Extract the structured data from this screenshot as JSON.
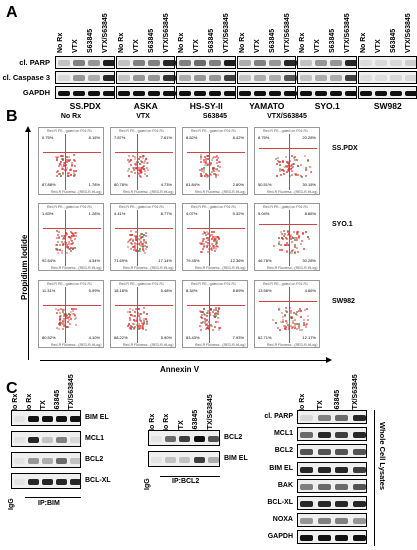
{
  "panelA": {
    "letter": "A",
    "lane_labels": [
      "No Rx",
      "VTX",
      "S63845",
      "VTX/S63845"
    ],
    "rows": [
      "cl. PARP",
      "cl. Caspase 3",
      "GAPDH"
    ],
    "cell_lines": [
      "SS.PDX",
      "ASKA",
      "HS-SY-II",
      "YAMATO",
      "SYO.1",
      "SW982"
    ]
  },
  "panelB": {
    "letter": "B",
    "columns": [
      "No Rx",
      "VTX",
      "S63845",
      "VTX/S63845"
    ],
    "rows": [
      "SS.PDX",
      "SYO.1",
      "SW982"
    ],
    "ylabel": "Propidium Iodide",
    "xlabel": "Annexin V",
    "plot_header": "Red R PE-, gated on P01.R1",
    "x_axis": "Red-R Fluoresc...(RED-R-HLog)",
    "y_axis": "Yellow-B Fluorescence (YEL-B-HLog)",
    "quadrants": [
      [
        [
          "0.75%",
          "8.15%",
          "87.88%",
          "1.78%"
        ],
        [
          "7.87%",
          "7.61%",
          "80.78%",
          "4.73%"
        ],
        [
          "8.82%",
          "8.42%",
          "81.84%",
          "2.80%"
        ],
        [
          "8.75%",
          "20.28%",
          "50.51%",
          "30.15%"
        ]
      ],
      [
        [
          "1.83%",
          "1.28%",
          "92.54%",
          "4.34%"
        ],
        [
          "4.41%",
          "8.77%",
          "71.69%",
          "17.14%"
        ],
        [
          "4.07%",
          "9.32%",
          "79.45%",
          "12.36%"
        ],
        [
          "5.04%",
          "8.66%",
          "46.78%",
          "30.28%"
        ]
      ],
      [
        [
          "11.31%",
          "5.99%",
          "80.52%",
          "4.10%"
        ],
        [
          "18.18%",
          "5.48%",
          "68.22%",
          "5.90%"
        ],
        [
          "8.34%",
          "8.69%",
          "83.43%",
          "7.93%"
        ],
        [
          "13.56%",
          "4.66%",
          "62.71%",
          "12.17%"
        ]
      ]
    ]
  },
  "panelC": {
    "letter": "C",
    "ip_bim": {
      "lanes": [
        "No Rx",
        "No Rx",
        "VTX",
        "S63845",
        "VTX/S63845"
      ],
      "rows": [
        "BIM EL",
        "MCL1",
        "BCL2",
        "BCL-XL"
      ],
      "igg": "IgG",
      "ip": "IP:BIM"
    },
    "ip_bcl2": {
      "lanes": [
        "No Rx",
        "No Rx",
        "VTX",
        "S63845",
        "VTX/S63845"
      ],
      "rows": [
        "BCL2",
        "BIM EL"
      ],
      "igg": "IgG",
      "ip": "IP:BCL2"
    },
    "wcl": {
      "lanes": [
        "No Rx",
        "VTX",
        "S63845",
        "VTX/S63845"
      ],
      "rows": [
        "cl. PARP",
        "MCL1",
        "BCL2",
        "BIM EL",
        "BAK",
        "BCL-XL",
        "NOXA",
        "GAPDH"
      ],
      "side": "Whole Cell Lysates"
    }
  }
}
